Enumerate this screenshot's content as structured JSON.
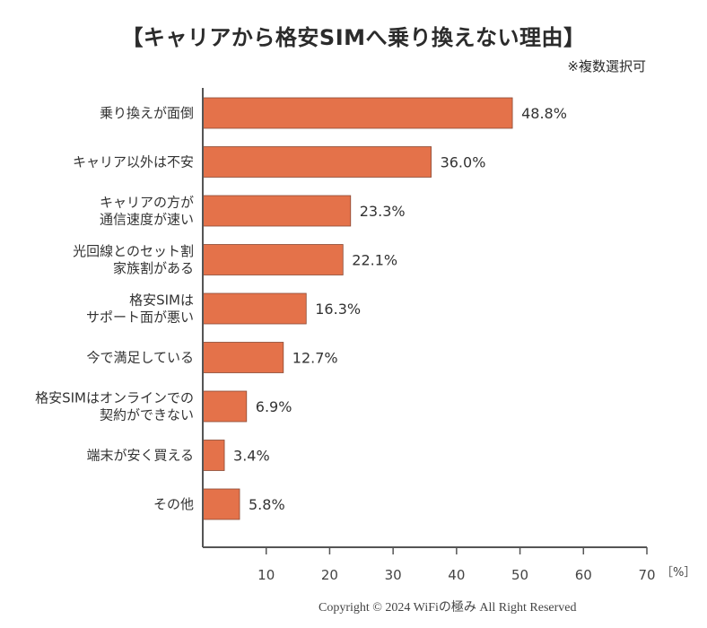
{
  "chart_data": {
    "type": "bar",
    "orientation": "horizontal",
    "title": "【キャリアから格安SIMへ乗り換えない理由】",
    "subtitle": "※複数選択可",
    "categories": [
      [
        "乗り換えが面倒"
      ],
      [
        "キャリア以外は不安"
      ],
      [
        "キャリアの方が",
        "通信速度が速い"
      ],
      [
        "光回線とのセット割",
        "家族割がある"
      ],
      [
        "格安SIMは",
        "サポート面が悪い"
      ],
      [
        "今で満足している"
      ],
      [
        "格安SIMはオンラインでの",
        "契約ができない"
      ],
      [
        "端末が安く買える"
      ],
      [
        "その他"
      ]
    ],
    "values": [
      48.8,
      36.0,
      23.3,
      22.1,
      16.3,
      12.7,
      6.9,
      3.4,
      5.8
    ],
    "value_labels": [
      "48.8%",
      "36.0%",
      "23.3%",
      "22.1%",
      "16.3%",
      "12.7%",
      "6.9%",
      "3.4%",
      "5.8%"
    ],
    "xlim": [
      0,
      70
    ],
    "xticks": [
      10,
      20,
      30,
      40,
      50,
      60,
      70
    ],
    "xlabel": "［%］",
    "ylabel": "",
    "grid": false,
    "bar_color": "#E4724A",
    "bar_edge_color": "#8a4a35",
    "axis_color": "#555555"
  },
  "footer": {
    "copyright": "Copyright © 2024 WiFiの極み All Right Reserved"
  }
}
